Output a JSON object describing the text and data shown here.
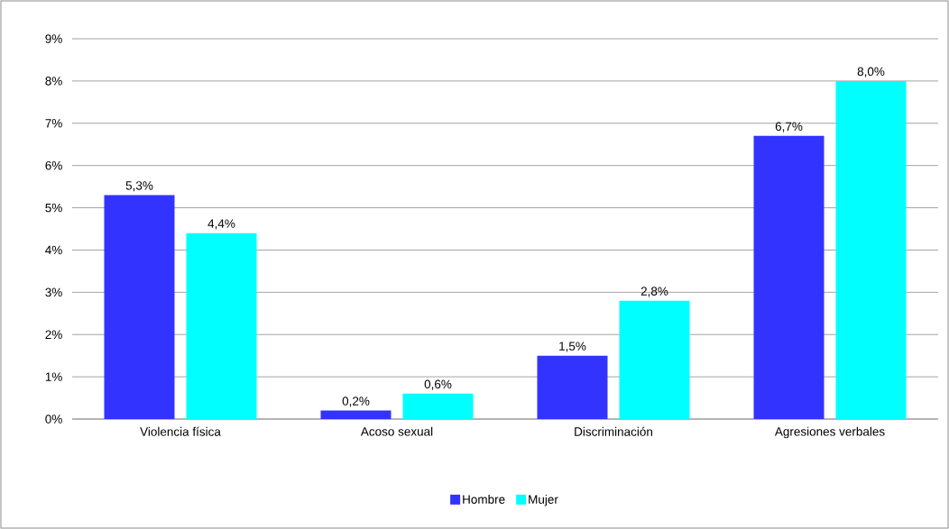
{
  "chart_data": {
    "type": "bar",
    "categories": [
      "Violencia física",
      "Acoso sexual",
      "Discriminación",
      "Agresiones verbales"
    ],
    "series": [
      {
        "name": "Hombre",
        "color": "#3333ff",
        "values": [
          5.3,
          0.2,
          1.5,
          6.7
        ],
        "value_labels": [
          "5,3%",
          "0,2%",
          "1,5%",
          "6,7%"
        ]
      },
      {
        "name": "Mujer",
        "color": "#00ffff",
        "values": [
          4.4,
          0.6,
          2.8,
          8.0
        ],
        "value_labels": [
          "4,4%",
          "0,6%",
          "2,8%",
          "8,0%"
        ]
      }
    ],
    "ylim": [
      0,
      9
    ],
    "yticks": [
      {
        "value": 0,
        "label": "0%"
      },
      {
        "value": 1,
        "label": "1%"
      },
      {
        "value": 2,
        "label": "2%"
      },
      {
        "value": 3,
        "label": "3%"
      },
      {
        "value": 4,
        "label": "4%"
      },
      {
        "value": 5,
        "label": "5%"
      },
      {
        "value": 6,
        "label": "6%"
      },
      {
        "value": 7,
        "label": "7%"
      },
      {
        "value": 8,
        "label": "8%"
      },
      {
        "value": 9,
        "label": "9%"
      }
    ],
    "grid": "y",
    "legend": "bottom"
  }
}
